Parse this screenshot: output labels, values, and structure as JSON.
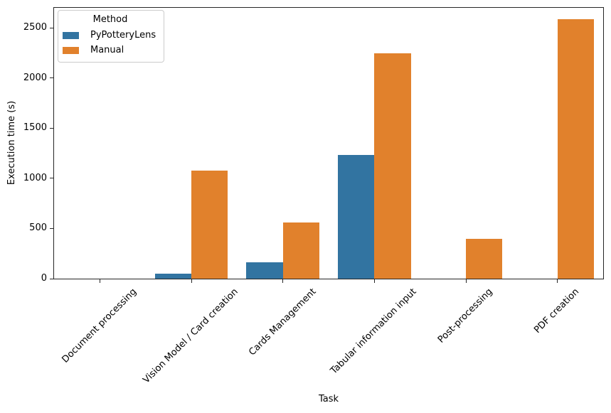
{
  "chart_data": {
    "type": "bar",
    "title": "",
    "xlabel": "Task",
    "ylabel": "Execution time (s)",
    "categories": [
      "Document processing",
      "Vision Model / Card creation",
      "Cards Management",
      "Tabular information input",
      "Post-processing",
      "PDF creation"
    ],
    "series": [
      {
        "name": "PyPotteryLens",
        "color": "#3274a1",
        "values": [
          0,
          50,
          160,
          1235,
          0,
          0
        ]
      },
      {
        "name": "Manual",
        "color": "#e1812c",
        "values": [
          0,
          1075,
          560,
          2250,
          400,
          2590
        ]
      }
    ],
    "legend": {
      "title": "Method",
      "position": "upper left"
    },
    "yticks": [
      0,
      500,
      1000,
      1500,
      2000,
      2500
    ],
    "ylim": [
      0,
      2700
    ],
    "grid": false,
    "bar_group_width_fraction": 0.8,
    "xtick_rotation_deg": 45
  }
}
